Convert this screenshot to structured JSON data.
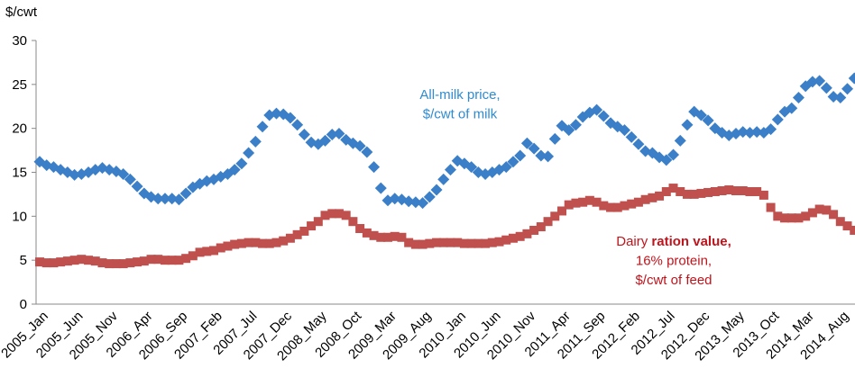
{
  "chart_data": {
    "type": "scatter-line",
    "y_label": "$/cwt",
    "categories": [
      "2005_Jan",
      null,
      null,
      null,
      null,
      "2005_Jun",
      null,
      null,
      null,
      null,
      "2005_Nov",
      null,
      null,
      null,
      null,
      "2006_Apr",
      null,
      null,
      null,
      null,
      "2006_Sep",
      null,
      null,
      null,
      null,
      "2007_Feb",
      null,
      null,
      null,
      null,
      "2007_Jul",
      null,
      null,
      null,
      null,
      "2007_Dec",
      null,
      null,
      null,
      null,
      "2008_May",
      null,
      null,
      null,
      null,
      "2008_Oct",
      null,
      null,
      null,
      null,
      "2009_Mar",
      null,
      null,
      null,
      null,
      "2009_Aug",
      null,
      null,
      null,
      null,
      "2010_Jan",
      null,
      null,
      null,
      null,
      "2010_Jun",
      null,
      null,
      null,
      null,
      "2010_Nov",
      null,
      null,
      null,
      null,
      "2011_Apr",
      null,
      null,
      null,
      null,
      "2011_Sep",
      null,
      null,
      null,
      null,
      "2012_Feb",
      null,
      null,
      null,
      null,
      "2012_Jul",
      null,
      null,
      null,
      null,
      "2012_Dec",
      null,
      null,
      null,
      null,
      "2013_May",
      null,
      null,
      null,
      null,
      "2013_Oct",
      null,
      null,
      null,
      null,
      "2014_Mar",
      null,
      null,
      null,
      null,
      "2014_Aug",
      null,
      null
    ],
    "series": [
      {
        "color": "#3b7fc8",
        "marker": "diamond",
        "values": [
          16.2,
          15.8,
          15.6,
          15.3,
          15.0,
          14.7,
          14.8,
          15.0,
          15.3,
          15.5,
          15.3,
          15.1,
          14.8,
          14.2,
          13.4,
          12.6,
          12.2,
          12.0,
          12.0,
          12.0,
          11.9,
          12.6,
          13.3,
          13.7,
          14.0,
          14.2,
          14.5,
          14.8,
          15.3,
          16.0,
          17.2,
          18.5,
          20.2,
          21.5,
          21.7,
          21.6,
          21.2,
          20.4,
          19.3,
          18.4,
          18.2,
          18.6,
          19.3,
          19.4,
          18.7,
          18.3,
          18.0,
          17.3,
          15.6,
          13.2,
          11.8,
          12.0,
          11.9,
          11.7,
          11.6,
          11.5,
          12.2,
          13.0,
          14.2,
          15.3,
          16.3,
          16.0,
          15.6,
          15.0,
          14.8,
          15.0,
          15.3,
          15.6,
          16.2,
          16.9,
          18.3,
          17.7,
          16.9,
          16.8,
          18.8,
          20.3,
          19.8,
          20.4,
          21.3,
          21.8,
          22.1,
          21.4,
          20.6,
          20.2,
          19.8,
          19.0,
          18.2,
          17.4,
          17.2,
          16.7,
          16.4,
          17.0,
          18.6,
          20.4,
          21.9,
          21.5,
          20.9,
          20.0,
          19.5,
          19.2,
          19.4,
          19.6,
          19.5,
          19.6,
          19.5,
          19.9,
          21.0,
          21.9,
          22.3,
          23.5,
          24.8,
          25.3,
          25.4,
          24.6,
          23.6,
          23.5,
          24.5,
          25.7
        ]
      },
      {
        "color": "#c0504d",
        "marker": "square",
        "values": [
          4.8,
          4.7,
          4.7,
          4.8,
          4.9,
          5.0,
          5.1,
          5.0,
          4.9,
          4.7,
          4.6,
          4.6,
          4.6,
          4.7,
          4.8,
          4.9,
          5.1,
          5.1,
          5.0,
          5.0,
          5.0,
          5.2,
          5.5,
          5.9,
          6.0,
          6.1,
          6.4,
          6.6,
          6.8,
          6.9,
          7.0,
          7.0,
          6.9,
          6.9,
          7.0,
          7.2,
          7.5,
          7.9,
          8.3,
          8.9,
          9.4,
          10.1,
          10.3,
          10.3,
          10.1,
          9.4,
          8.6,
          8.1,
          7.8,
          7.6,
          7.6,
          7.7,
          7.6,
          7.0,
          6.8,
          6.8,
          6.9,
          7.0,
          7.0,
          7.0,
          7.0,
          6.9,
          6.9,
          6.9,
          6.9,
          7.0,
          7.1,
          7.3,
          7.5,
          7.7,
          8.0,
          8.4,
          8.8,
          9.4,
          10.0,
          10.6,
          11.3,
          11.5,
          11.6,
          11.8,
          11.6,
          11.2,
          11.0,
          11.0,
          11.2,
          11.4,
          11.6,
          11.9,
          12.1,
          12.3,
          12.8,
          13.2,
          12.8,
          12.5,
          12.5,
          12.6,
          12.7,
          12.8,
          12.9,
          13.0,
          12.9,
          12.9,
          12.8,
          12.8,
          12.4,
          11.0,
          10.0,
          9.8,
          9.8,
          9.8,
          10.0,
          10.4,
          10.8,
          10.7,
          10.2,
          9.4,
          8.9,
          8.4
        ]
      }
    ],
    "annotations": [
      {
        "color": "#2e8bd0",
        "lines": [
          [
            {
              "text": "All-milk price,",
              "bold": false
            }
          ],
          [
            {
              "text": "$/cwt of milk",
              "bold": false
            }
          ]
        ]
      },
      {
        "color": "#c0141c",
        "lines": [
          [
            {
              "text": "Dairy ",
              "bold": false
            },
            {
              "text": "ration value,",
              "bold": true
            }
          ],
          [
            {
              "text": "16% protein,",
              "bold": false
            }
          ],
          [
            {
              "text": "$/cwt of feed",
              "bold": false
            }
          ]
        ]
      }
    ],
    "ylim": [
      0,
      30
    ],
    "yticks": [
      0,
      5,
      10,
      15,
      20,
      25,
      30
    ],
    "grid": false
  }
}
